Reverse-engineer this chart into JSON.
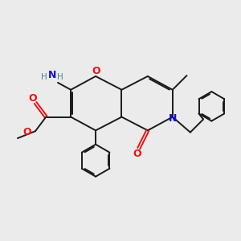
{
  "bg_color": "#ebebeb",
  "bond_color": "#1a1a1a",
  "o_color": "#ee1111",
  "n_color": "#1111cc",
  "nh2_color": "#448888",
  "lw": 1.4,
  "dbo": 0.055,
  "xlim": [
    0,
    10
  ],
  "ylim": [
    0,
    10
  ]
}
